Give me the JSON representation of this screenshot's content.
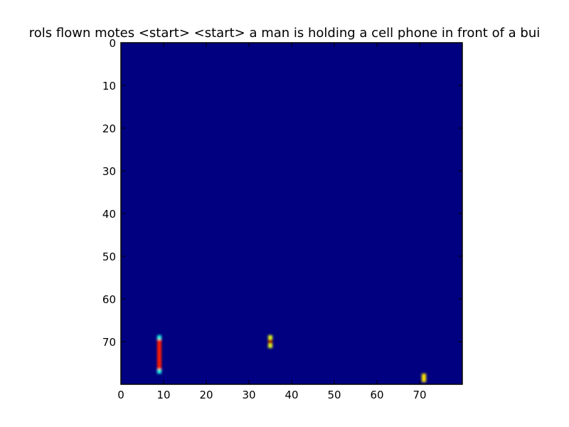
{
  "chart_data": {
    "type": "heatmap",
    "title": "rols flown motes <start> <start> a man is holding a cell phone in front of a bui",
    "xlabel": "",
    "ylabel": "",
    "xlim": [
      0,
      80
    ],
    "ylim": [
      80,
      0
    ],
    "x_ticks": [
      "0",
      "10",
      "20",
      "30",
      "40",
      "50",
      "60",
      "70"
    ],
    "y_ticks": [
      "0",
      "10",
      "20",
      "30",
      "40",
      "50",
      "60",
      "70"
    ],
    "colormap": "jet",
    "background_value": 0.0,
    "grid": false,
    "legend": "none",
    "hot_regions": [
      {
        "x": 9,
        "y_start": 69,
        "y_end": 77,
        "value": 0.85,
        "edge_value": 0.4
      },
      {
        "x": 35,
        "y_start": 69,
        "y_end": 71,
        "value": 0.95,
        "edge_value": 0.6
      },
      {
        "x": 71,
        "y_start": 78,
        "y_end": 79,
        "value": 0.65,
        "edge_value": 0.45
      }
    ]
  },
  "colors": {
    "background_cell": "#000080",
    "hot_core": "#ff7f00",
    "hot_edge": "#3fe8ff",
    "yellow_green": "#bfff3f"
  }
}
